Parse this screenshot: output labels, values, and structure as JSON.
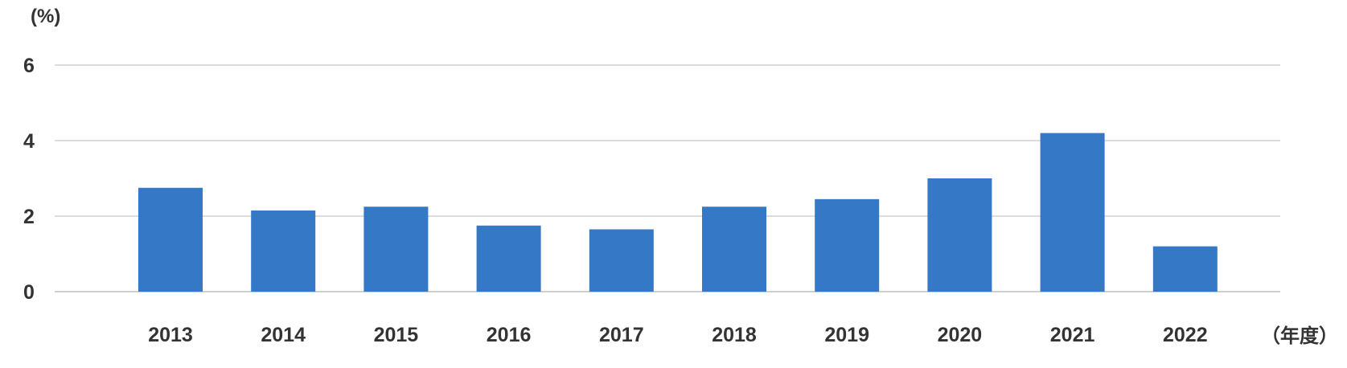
{
  "chart_data": {
    "type": "bar",
    "title": "",
    "xlabel": "",
    "ylabel": "",
    "y_unit_label": "(%)",
    "x_unit_label": "（年度）",
    "categories": [
      "2013",
      "2014",
      "2015",
      "2016",
      "2017",
      "2018",
      "2019",
      "2020",
      "2021",
      "2022"
    ],
    "values": [
      2.75,
      2.15,
      2.25,
      1.75,
      1.65,
      2.25,
      2.45,
      3.0,
      4.2,
      1.2
    ],
    "yticks": [
      "0",
      "2",
      "4",
      "6"
    ],
    "ylim": [
      0,
      6
    ],
    "grid": true,
    "legend": "none",
    "bar_color": "#3478C6",
    "grid_color": "#D0D0D0"
  }
}
